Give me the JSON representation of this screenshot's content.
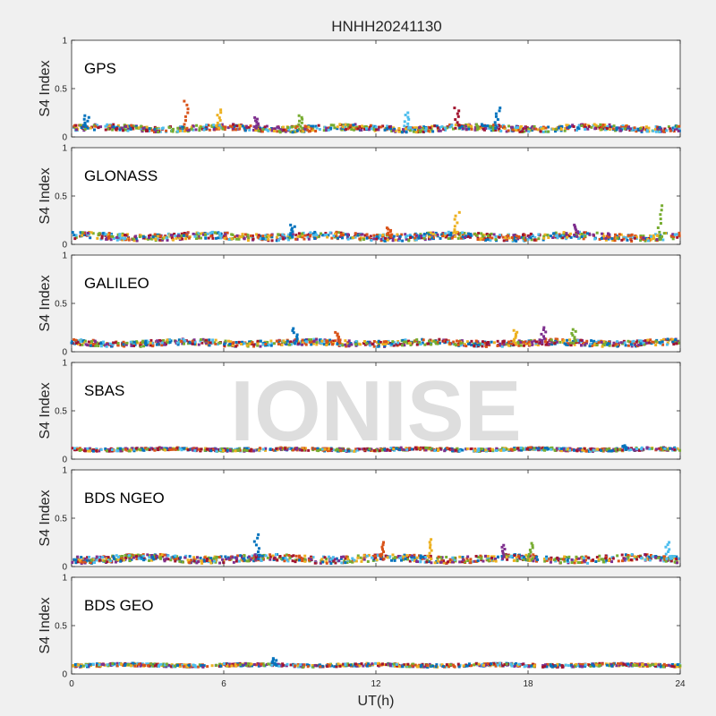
{
  "chart_data": {
    "type": "scatter",
    "title": "HNHH20241130",
    "xlabel": "UT(h)",
    "ylabel": "S4 Index",
    "xlim": [
      0,
      24
    ],
    "ylim": [
      0,
      1
    ],
    "xticks": [
      "0",
      "6",
      "12",
      "18",
      "24"
    ],
    "yticks": [
      "0",
      "0.5",
      "1"
    ],
    "grid": false,
    "watermark": "IONISE",
    "colors": [
      "#0072BD",
      "#D95319",
      "#EDB120",
      "#7E2F8E",
      "#77AC30",
      "#4DBEEE",
      "#A2142F"
    ],
    "panels": [
      {
        "label": "GPS",
        "baseline": 0.09,
        "noise": 0.03,
        "spikes": [
          {
            "x": 0.6,
            "y": 0.22
          },
          {
            "x": 4.5,
            "y": 0.37
          },
          {
            "x": 5.8,
            "y": 0.28
          },
          {
            "x": 7.3,
            "y": 0.2
          },
          {
            "x": 9.0,
            "y": 0.22
          },
          {
            "x": 13.2,
            "y": 0.25
          },
          {
            "x": 15.2,
            "y": 0.3
          },
          {
            "x": 16.8,
            "y": 0.3
          }
        ]
      },
      {
        "label": "GLONASS",
        "baseline": 0.08,
        "noise": 0.035,
        "spikes": [
          {
            "x": 8.7,
            "y": 0.2
          },
          {
            "x": 12.5,
            "y": 0.17
          },
          {
            "x": 15.2,
            "y": 0.33
          },
          {
            "x": 19.9,
            "y": 0.2
          },
          {
            "x": 23.2,
            "y": 0.4
          }
        ]
      },
      {
        "label": "GALILEO",
        "baseline": 0.09,
        "noise": 0.03,
        "spikes": [
          {
            "x": 8.8,
            "y": 0.24
          },
          {
            "x": 10.5,
            "y": 0.2
          },
          {
            "x": 17.5,
            "y": 0.22
          },
          {
            "x": 18.6,
            "y": 0.25
          },
          {
            "x": 19.8,
            "y": 0.23
          }
        ]
      },
      {
        "label": "SBAS",
        "baseline": 0.1,
        "noise": 0.015,
        "spikes": [
          {
            "x": 21.8,
            "y": 0.14
          }
        ]
      },
      {
        "label": "BDS NGEO",
        "baseline": 0.08,
        "noise": 0.035,
        "spikes": [
          {
            "x": 7.3,
            "y": 0.33
          },
          {
            "x": 12.3,
            "y": 0.25
          },
          {
            "x": 14.1,
            "y": 0.28
          },
          {
            "x": 17.0,
            "y": 0.22
          },
          {
            "x": 18.1,
            "y": 0.24
          },
          {
            "x": 23.5,
            "y": 0.25
          }
        ]
      },
      {
        "label": "BDS GEO",
        "baseline": 0.09,
        "noise": 0.015,
        "spikes": [
          {
            "x": 8.0,
            "y": 0.16
          }
        ]
      }
    ]
  }
}
